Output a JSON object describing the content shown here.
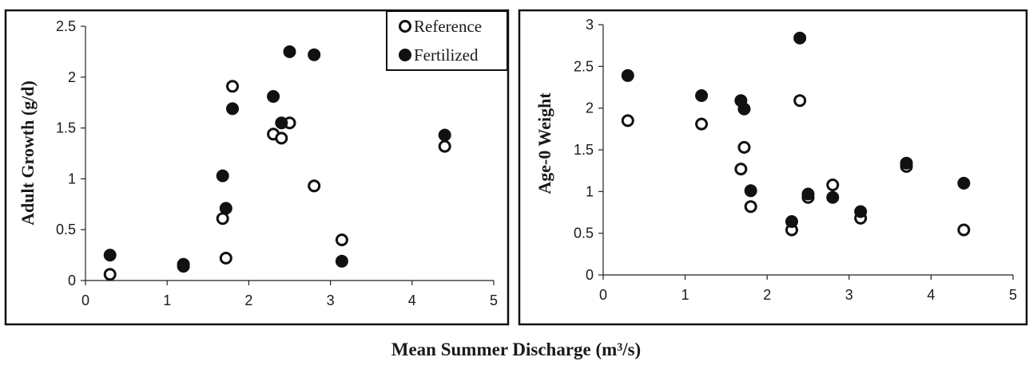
{
  "xlabel_main": "Mean Summer Discharge (m³/s)",
  "chart_data": [
    {
      "type": "scatter",
      "title": "",
      "xlabel": "",
      "ylabel": "Adult Growth (g/d)",
      "xlim": [
        0,
        5
      ],
      "ylim": [
        0,
        2.5
      ],
      "xticks": [
        "0",
        "1",
        "2",
        "3",
        "4",
        "5"
      ],
      "yticks": [
        "0",
        "0.5",
        "1",
        "1.5",
        "2",
        "2.5"
      ],
      "legend_position": "top-right",
      "grid": false,
      "series": [
        {
          "name": "Reference",
          "marker": "open-circle",
          "points": [
            {
              "x": 0.3,
              "y": 0.06
            },
            {
              "x": 1.2,
              "y": 0.16
            },
            {
              "x": 1.68,
              "y": 0.61
            },
            {
              "x": 1.72,
              "y": 0.22
            },
            {
              "x": 1.8,
              "y": 1.91
            },
            {
              "x": 2.3,
              "y": 1.44
            },
            {
              "x": 2.4,
              "y": 1.4
            },
            {
              "x": 2.5,
              "y": 1.55
            },
            {
              "x": 2.8,
              "y": 0.93
            },
            {
              "x": 3.14,
              "y": 0.4
            },
            {
              "x": 4.4,
              "y": 1.32
            }
          ]
        },
        {
          "name": "Fertilized",
          "marker": "filled-circle",
          "points": [
            {
              "x": 0.3,
              "y": 0.25
            },
            {
              "x": 1.2,
              "y": 0.14
            },
            {
              "x": 1.68,
              "y": 1.03
            },
            {
              "x": 1.72,
              "y": 0.71
            },
            {
              "x": 1.8,
              "y": 1.69
            },
            {
              "x": 2.3,
              "y": 1.81
            },
            {
              "x": 2.4,
              "y": 1.55
            },
            {
              "x": 2.5,
              "y": 2.25
            },
            {
              "x": 2.8,
              "y": 2.22
            },
            {
              "x": 3.14,
              "y": 0.19
            },
            {
              "x": 4.4,
              "y": 1.43
            }
          ]
        }
      ]
    },
    {
      "type": "scatter",
      "title": "",
      "xlabel": "",
      "ylabel": "Age-0 Weight",
      "xlim": [
        0,
        5
      ],
      "ylim": [
        0,
        3
      ],
      "xticks": [
        "0",
        "1",
        "2",
        "3",
        "4",
        "5"
      ],
      "yticks": [
        "0",
        "0.5",
        "1",
        "1.5",
        "2",
        "2.5",
        "3"
      ],
      "grid": false,
      "series": [
        {
          "name": "Reference",
          "marker": "open-circle",
          "points": [
            {
              "x": 0.3,
              "y": 1.85
            },
            {
              "x": 1.2,
              "y": 1.81
            },
            {
              "x": 1.68,
              "y": 1.27
            },
            {
              "x": 1.72,
              "y": 1.53
            },
            {
              "x": 1.8,
              "y": 0.82
            },
            {
              "x": 2.3,
              "y": 0.54
            },
            {
              "x": 2.4,
              "y": 2.09
            },
            {
              "x": 2.5,
              "y": 0.93
            },
            {
              "x": 2.8,
              "y": 1.08
            },
            {
              "x": 3.14,
              "y": 0.68
            },
            {
              "x": 3.7,
              "y": 1.3
            },
            {
              "x": 4.4,
              "y": 0.54
            }
          ]
        },
        {
          "name": "Fertilized",
          "marker": "filled-circle",
          "points": [
            {
              "x": 0.3,
              "y": 2.39
            },
            {
              "x": 1.2,
              "y": 2.15
            },
            {
              "x": 1.68,
              "y": 2.09
            },
            {
              "x": 1.72,
              "y": 1.99
            },
            {
              "x": 1.8,
              "y": 1.01
            },
            {
              "x": 2.3,
              "y": 0.64
            },
            {
              "x": 2.4,
              "y": 2.84
            },
            {
              "x": 2.5,
              "y": 0.97
            },
            {
              "x": 2.8,
              "y": 0.93
            },
            {
              "x": 3.14,
              "y": 0.76
            },
            {
              "x": 3.7,
              "y": 1.34
            },
            {
              "x": 4.4,
              "y": 1.1
            }
          ]
        }
      ]
    }
  ]
}
